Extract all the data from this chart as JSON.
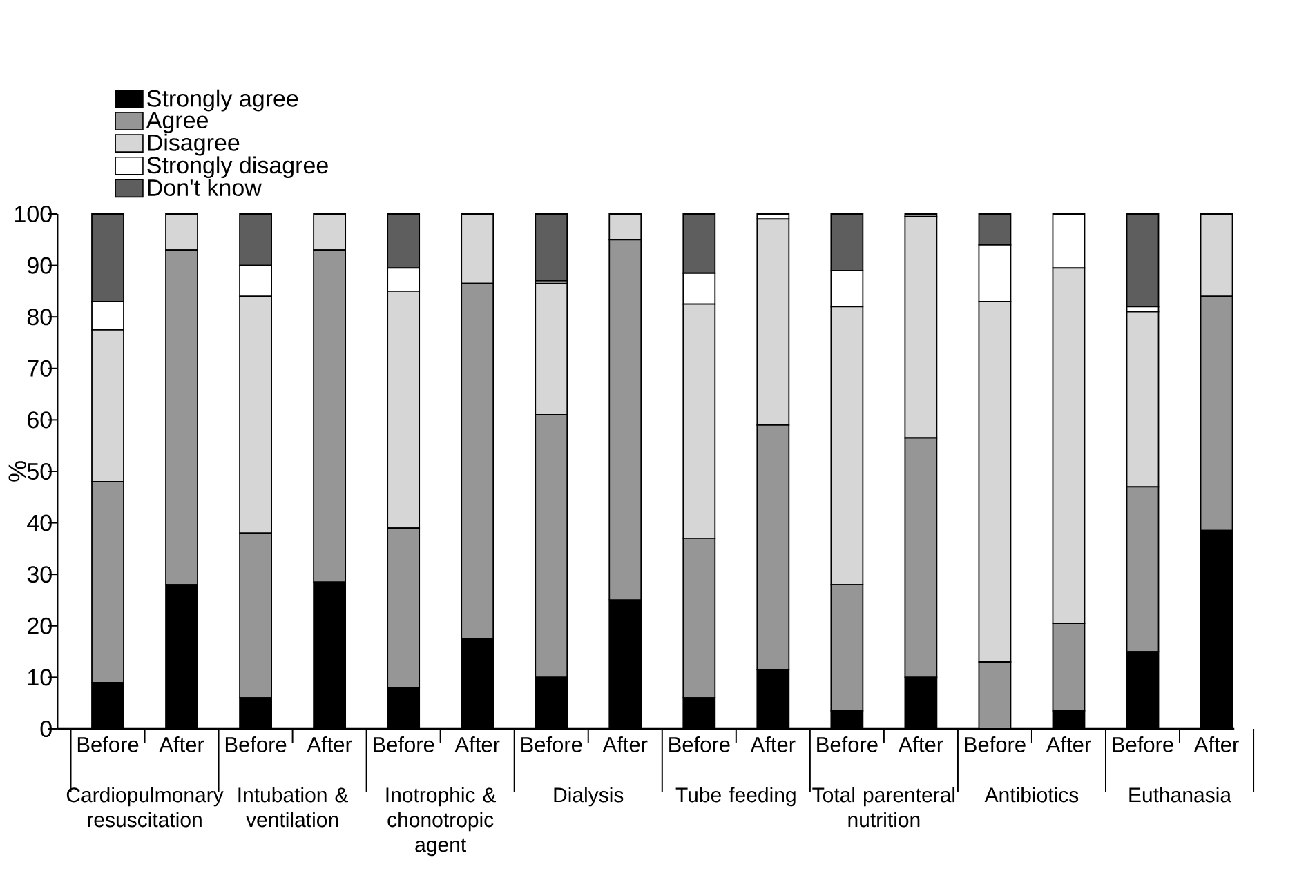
{
  "chart_data": {
    "type": "bar",
    "stacked": true,
    "ylabel": "%",
    "categories": [
      "Before",
      "After",
      "Before",
      "After",
      "Before",
      "After",
      "Before",
      "After",
      "Before",
      "After",
      "Before",
      "After",
      "Before",
      "After",
      "Before",
      "After"
    ],
    "annotations": [
      "Cardiopulmonary resuscitation",
      "Intubation & ventilation",
      "Inotrophic & chonotropic agent",
      "Dialysis",
      "Tube feeding",
      "Total parenteral nutrition",
      "Antibiotics",
      "Euthanasia"
    ],
    "series": [
      {
        "name": "Strongly agree",
        "color": "#000000",
        "values": [
          9,
          28,
          6,
          28.5,
          8,
          17.5,
          10,
          25,
          6,
          11.5,
          3.5,
          10,
          0,
          3.5,
          15,
          38.5
        ]
      },
      {
        "name": "Agree",
        "color": "#969696",
        "values": [
          39,
          65,
          32,
          64.5,
          31,
          69,
          51,
          70,
          31,
          47.5,
          24.5,
          46.5,
          13,
          17,
          32,
          45.5
        ]
      },
      {
        "name": "Disagree",
        "color": "#d6d6d6",
        "values": [
          29.5,
          7,
          46,
          7,
          46,
          13.5,
          25.5,
          5,
          45.5,
          40,
          54,
          43,
          70,
          69,
          34,
          16
        ]
      },
      {
        "name": "Strongly disagree",
        "color": "#ffffff",
        "values": [
          5.5,
          0,
          6,
          0,
          4.5,
          0,
          0.5,
          0,
          6,
          1,
          7,
          0.5,
          11,
          10.5,
          1,
          0
        ]
      },
      {
        "name": "Don't know",
        "color": "#5e5e5e",
        "values": [
          17,
          0,
          10,
          0,
          10.5,
          0,
          13,
          0,
          11.5,
          0,
          11,
          0,
          6,
          0,
          18,
          0
        ]
      }
    ],
    "ylim": [
      0,
      100
    ],
    "yticks": [
      0,
      10,
      20,
      30,
      40,
      50,
      60,
      70,
      80,
      90,
      100
    ],
    "legend": "top left",
    "grid": false
  }
}
